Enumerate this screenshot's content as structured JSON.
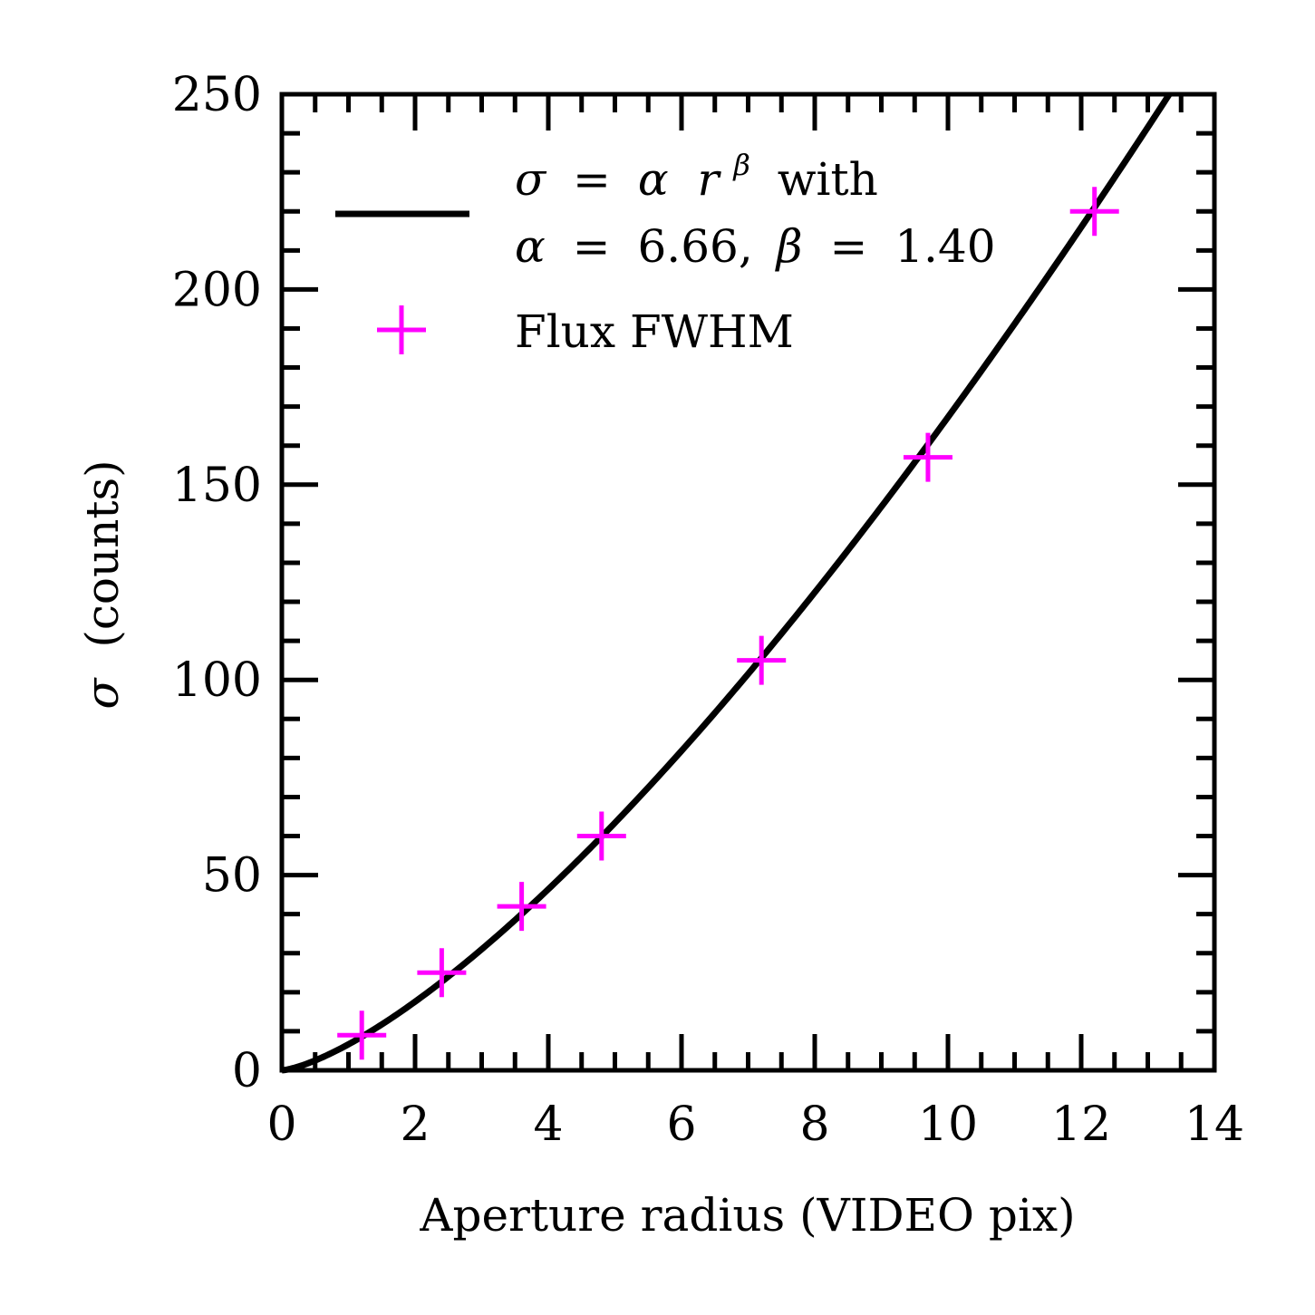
{
  "chart_data": {
    "type": "line",
    "xlabel": "Aperture radius (VIDEO pix)",
    "ylabel_symbol": "σ",
    "ylabel_text": "(counts)",
    "xlim": [
      0,
      14
    ],
    "ylim": [
      0,
      250
    ],
    "x_ticks": [
      0,
      2,
      4,
      6,
      8,
      10,
      12,
      14
    ],
    "y_ticks": [
      0,
      50,
      100,
      150,
      200,
      250
    ],
    "x_tick_labels": [
      "0",
      "2",
      "4",
      "6",
      "8",
      "10",
      "12",
      "14"
    ],
    "y_tick_labels": [
      "0",
      "50",
      "100",
      "150",
      "200",
      "250"
    ],
    "x_minor_step": 0.5,
    "y_minor_step": 10,
    "grid": false,
    "legend_position": "top-left",
    "fit": {
      "model": "power-law",
      "alpha": 6.66,
      "beta": 1.4,
      "color": "#000000",
      "legend_line1": {
        "sigma": "σ",
        "eq": "=",
        "alpha": "α",
        "r": "r",
        "beta": "β",
        "tail": "with"
      },
      "legend_line2": {
        "alpha": "α",
        "eq1": "=",
        "alpha_val": "6.66,",
        "beta": "β",
        "eq2": "=",
        "beta_val": "1.40"
      }
    },
    "series": [
      {
        "name": "Flux FWHM",
        "marker": "plus",
        "color": "#ff00ff",
        "x": [
          1.2,
          2.4,
          3.6,
          4.8,
          7.2,
          9.7,
          12.2
        ],
        "y": [
          9,
          25,
          42,
          60,
          105,
          157,
          220
        ]
      }
    ]
  }
}
